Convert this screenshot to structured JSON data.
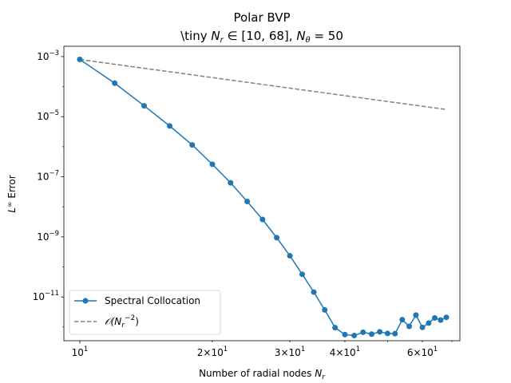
{
  "chart_data": {
    "type": "line",
    "title": "Polar BVP",
    "subtitle_parts": [
      "\\tiny ",
      "N",
      "r",
      " ∈ [10, 68], ",
      "N",
      "θ",
      " = 50"
    ],
    "xlabel_parts": [
      "Number of radial nodes ",
      "N",
      "r"
    ],
    "ylabel_parts": [
      "L",
      "∞",
      " Error"
    ],
    "x_scale": "log",
    "y_scale": "log",
    "xlim": [
      9.2,
      73
    ],
    "ylim": [
      3.5e-13,
      0.0022
    ],
    "grid": false,
    "legend_position": "lower left",
    "x_ticks": [
      {
        "value": 10,
        "base": "10",
        "exp": "1"
      },
      {
        "value": 20,
        "base": "2×10",
        "exp": "1"
      },
      {
        "value": 30,
        "base": "3×10",
        "exp": "1"
      },
      {
        "value": 40,
        "base": "4×10",
        "exp": "1"
      },
      {
        "value": 60,
        "base": "6×10",
        "exp": "1"
      }
    ],
    "x_minor_ticks": [
      50,
      70
    ],
    "y_ticks": [
      {
        "value": 0.001,
        "base": "10",
        "exp": "−3"
      },
      {
        "value": 1e-05,
        "base": "10",
        "exp": "−5"
      },
      {
        "value": 1e-07,
        "base": "10",
        "exp": "−7"
      },
      {
        "value": 1e-09,
        "base": "10",
        "exp": "−9"
      },
      {
        "value": 1e-11,
        "base": "10",
        "exp": "−11"
      }
    ],
    "series": [
      {
        "name": "Spectral Collocation",
        "color": "#1f77b4",
        "marker": "circle",
        "line_style": "solid",
        "points": [
          [
            10,
            0.0008
          ],
          [
            12,
            0.00013
          ],
          [
            14,
            2.3e-05
          ],
          [
            16,
            4.9e-06
          ],
          [
            18,
            1.15e-06
          ],
          [
            20,
            2.6e-07
          ],
          [
            22,
            6.3e-08
          ],
          [
            24,
            1.5e-08
          ],
          [
            26,
            3.8e-09
          ],
          [
            28,
            9.4e-10
          ],
          [
            30,
            2.35e-10
          ],
          [
            32,
            5.7e-11
          ],
          [
            34,
            1.45e-11
          ],
          [
            36,
            3.7e-12
          ],
          [
            38,
            9.5e-13
          ],
          [
            40,
            5.6e-13
          ],
          [
            42,
            5.2e-13
          ],
          [
            44,
            6.7e-13
          ],
          [
            46,
            5.8e-13
          ],
          [
            48,
            6.9e-13
          ],
          [
            50,
            6.1e-13
          ],
          [
            52,
            6e-13
          ],
          [
            54,
            1.75e-12
          ],
          [
            56,
            1.05e-12
          ],
          [
            58,
            2.5e-12
          ],
          [
            60,
            9.7e-13
          ],
          [
            62,
            1.35e-12
          ],
          [
            64,
            2e-12
          ],
          [
            66,
            1.7e-12
          ],
          [
            68,
            2.1e-12
          ]
        ]
      },
      {
        "name_parts": [
          "𝒪(N",
          "r",
          "−2",
          ")"
        ],
        "color": "#808080",
        "marker": "none",
        "line_style": "dashed",
        "points": [
          [
            10,
            0.0008
          ],
          [
            68,
            1.73e-05
          ]
        ]
      }
    ]
  }
}
